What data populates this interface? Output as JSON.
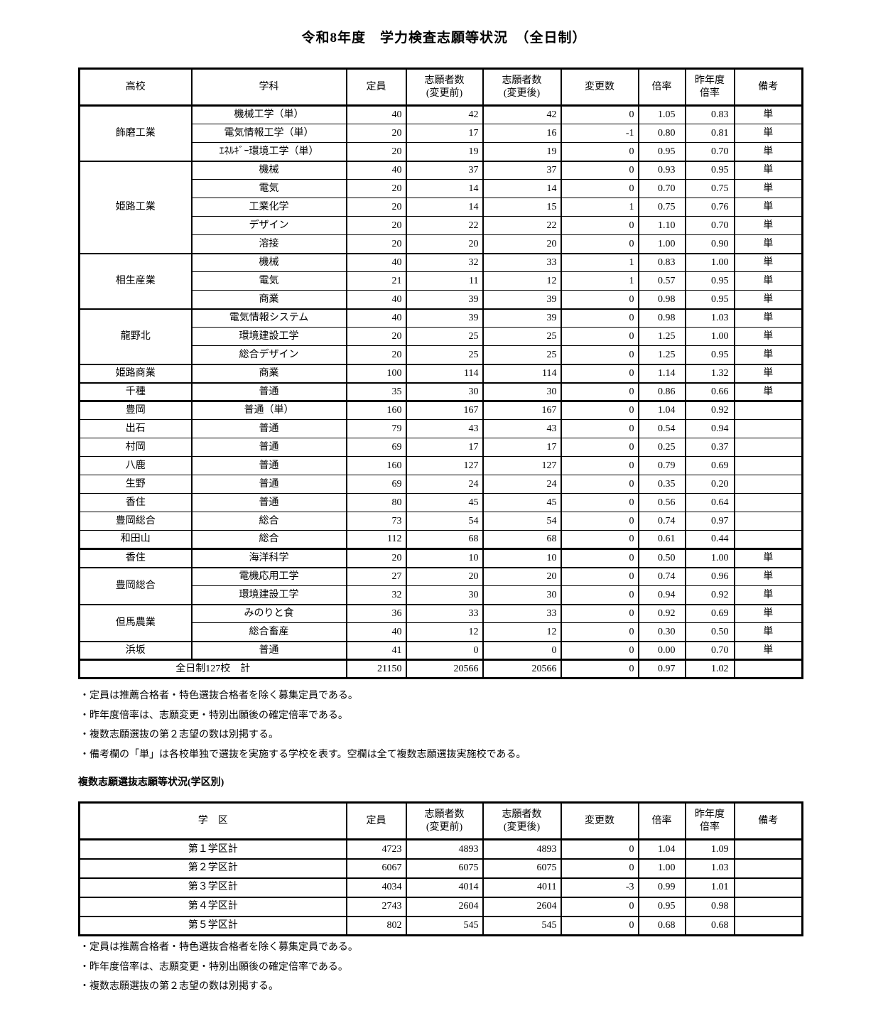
{
  "page": {
    "title": "令和8年度　学力検査志願等状況　（全日制）"
  },
  "table1": {
    "headers": {
      "school": "高校",
      "department": "学科",
      "capacity": "定員",
      "applicants_before": "志願者数\n(変更前)",
      "applicants_after": "志願者数\n(変更後)",
      "change": "変更数",
      "ratio": "倍率",
      "prev_ratio": "昨年度\n倍率",
      "remarks": "備考"
    },
    "groups": [
      {
        "school": "飾磨工業",
        "section": 1,
        "rows": [
          [
            "機械工学（単）",
            "40",
            "42",
            "42",
            "0",
            "1.05",
            "0.83",
            "単"
          ],
          [
            "電気情報工学（単）",
            "20",
            "17",
            "16",
            "-1",
            "0.80",
            "0.81",
            "単"
          ],
          [
            "ｴﾈﾙｷﾞｰ環境工学（単）",
            "20",
            "19",
            "19",
            "0",
            "0.95",
            "0.70",
            "単"
          ]
        ]
      },
      {
        "school": "姫路工業",
        "section": 1,
        "rows": [
          [
            "機械",
            "40",
            "37",
            "37",
            "0",
            "0.93",
            "0.95",
            "単"
          ],
          [
            "電気",
            "20",
            "14",
            "14",
            "0",
            "0.70",
            "0.75",
            "単"
          ],
          [
            "工業化学",
            "20",
            "14",
            "15",
            "1",
            "0.75",
            "0.76",
            "単"
          ],
          [
            "デザイン",
            "20",
            "22",
            "22",
            "0",
            "1.10",
            "0.70",
            "単"
          ],
          [
            "溶接",
            "20",
            "20",
            "20",
            "0",
            "1.00",
            "0.90",
            "単"
          ]
        ]
      },
      {
        "school": "相生産業",
        "section": 1,
        "rows": [
          [
            "機械",
            "40",
            "32",
            "33",
            "1",
            "0.83",
            "1.00",
            "単"
          ],
          [
            "電気",
            "21",
            "11",
            "12",
            "1",
            "0.57",
            "0.95",
            "単"
          ],
          [
            "商業",
            "40",
            "39",
            "39",
            "0",
            "0.98",
            "0.95",
            "単"
          ]
        ]
      },
      {
        "school": "龍野北",
        "section": 1,
        "rows": [
          [
            "電気情報システム",
            "40",
            "39",
            "39",
            "0",
            "0.98",
            "1.03",
            "単"
          ],
          [
            "環境建設工学",
            "20",
            "25",
            "25",
            "0",
            "1.25",
            "1.00",
            "単"
          ],
          [
            "総合デザイン",
            "20",
            "25",
            "25",
            "0",
            "1.25",
            "0.95",
            "単"
          ]
        ]
      },
      {
        "school": "姫路商業",
        "section": 1,
        "rows": [
          [
            "商業",
            "100",
            "114",
            "114",
            "0",
            "1.14",
            "1.32",
            "単"
          ]
        ]
      },
      {
        "school": "千種",
        "section": 1,
        "rows": [
          [
            "普通",
            "35",
            "30",
            "30",
            "0",
            "0.86",
            "0.66",
            "単"
          ]
        ]
      },
      {
        "school": "豊岡",
        "section": 2,
        "rows": [
          [
            "普通（単）",
            "160",
            "167",
            "167",
            "0",
            "1.04",
            "0.92",
            ""
          ]
        ]
      },
      {
        "school": "出石",
        "section": 2,
        "rows": [
          [
            "普通",
            "79",
            "43",
            "43",
            "0",
            "0.54",
            "0.94",
            ""
          ]
        ]
      },
      {
        "school": "村岡",
        "section": 2,
        "rows": [
          [
            "普通",
            "69",
            "17",
            "17",
            "0",
            "0.25",
            "0.37",
            ""
          ]
        ]
      },
      {
        "school": "八鹿",
        "section": 2,
        "rows": [
          [
            "普通",
            "160",
            "127",
            "127",
            "0",
            "0.79",
            "0.69",
            ""
          ]
        ]
      },
      {
        "school": "生野",
        "section": 2,
        "rows": [
          [
            "普通",
            "69",
            "24",
            "24",
            "0",
            "0.35",
            "0.20",
            ""
          ]
        ]
      },
      {
        "school": "香住",
        "section": 2,
        "rows": [
          [
            "普通",
            "80",
            "45",
            "45",
            "0",
            "0.56",
            "0.64",
            ""
          ]
        ]
      },
      {
        "school": "豊岡総合",
        "section": 2,
        "rows": [
          [
            "総合",
            "73",
            "54",
            "54",
            "0",
            "0.74",
            "0.97",
            ""
          ]
        ]
      },
      {
        "school": "和田山",
        "section": 2,
        "rows": [
          [
            "総合",
            "112",
            "68",
            "68",
            "0",
            "0.61",
            "0.44",
            ""
          ]
        ]
      },
      {
        "school": "香住",
        "section": 3,
        "rows": [
          [
            "海洋科学",
            "20",
            "10",
            "10",
            "0",
            "0.50",
            "1.00",
            "単"
          ]
        ]
      },
      {
        "school": "豊岡総合",
        "section": 3,
        "rows": [
          [
            "電機応用工学",
            "27",
            "20",
            "20",
            "0",
            "0.74",
            "0.96",
            "単"
          ],
          [
            "環境建設工学",
            "32",
            "30",
            "30",
            "0",
            "0.94",
            "0.92",
            "単"
          ]
        ]
      },
      {
        "school": "但馬農業",
        "section": 3,
        "rows": [
          [
            "みのりと食",
            "36",
            "33",
            "33",
            "0",
            "0.92",
            "0.69",
            "単"
          ],
          [
            "総合畜産",
            "40",
            "12",
            "12",
            "0",
            "0.30",
            "0.50",
            "単"
          ]
        ]
      },
      {
        "school": "浜坂",
        "section": 3,
        "rows": [
          [
            "普通",
            "41",
            "0",
            "0",
            "0",
            "0.00",
            "0.70",
            "単"
          ]
        ]
      }
    ],
    "total": {
      "label": "全日制127校　計",
      "values": [
        "21150",
        "20566",
        "20566",
        "0",
        "0.97",
        "1.02",
        ""
      ]
    },
    "notes": [
      "・定員は推薦合格者・特色選抜合格者を除く募集定員である。",
      "・昨年度倍率は、志願変更・特別出願後の確定倍率である。",
      "・複数志願選抜の第２志望の数は別掲する。",
      "・備考欄の「単」は各校単独で選抜を実施する学校を表す。空欄は全て複数志願選抜実施校である。"
    ]
  },
  "table2": {
    "title": "複数志願選抜志願等状況(学区別)",
    "headers": {
      "district": "学　区",
      "capacity": "定員",
      "applicants_before": "志願者数\n(変更前)",
      "applicants_after": "志願者数\n(変更後)",
      "change": "変更数",
      "ratio": "倍率",
      "prev_ratio": "昨年度\n倍率",
      "remarks": "備考"
    },
    "rows": [
      [
        "第１学区計",
        "4723",
        "4893",
        "4893",
        "0",
        "1.04",
        "1.09",
        ""
      ],
      [
        "第２学区計",
        "6067",
        "6075",
        "6075",
        "0",
        "1.00",
        "1.03",
        ""
      ],
      [
        "第３学区計",
        "4034",
        "4014",
        "4011",
        "-3",
        "0.99",
        "1.01",
        ""
      ],
      [
        "第４学区計",
        "2743",
        "2604",
        "2604",
        "0",
        "0.95",
        "0.98",
        ""
      ],
      [
        "第５学区計",
        "802",
        "545",
        "545",
        "0",
        "0.68",
        "0.68",
        ""
      ]
    ],
    "notes": [
      "・定員は推薦合格者・特色選抜合格者を除く募集定員である。",
      "・昨年度倍率は、志願変更・特別出願後の確定倍率である。",
      "・複数志願選抜の第２志望の数は別掲する。"
    ]
  }
}
